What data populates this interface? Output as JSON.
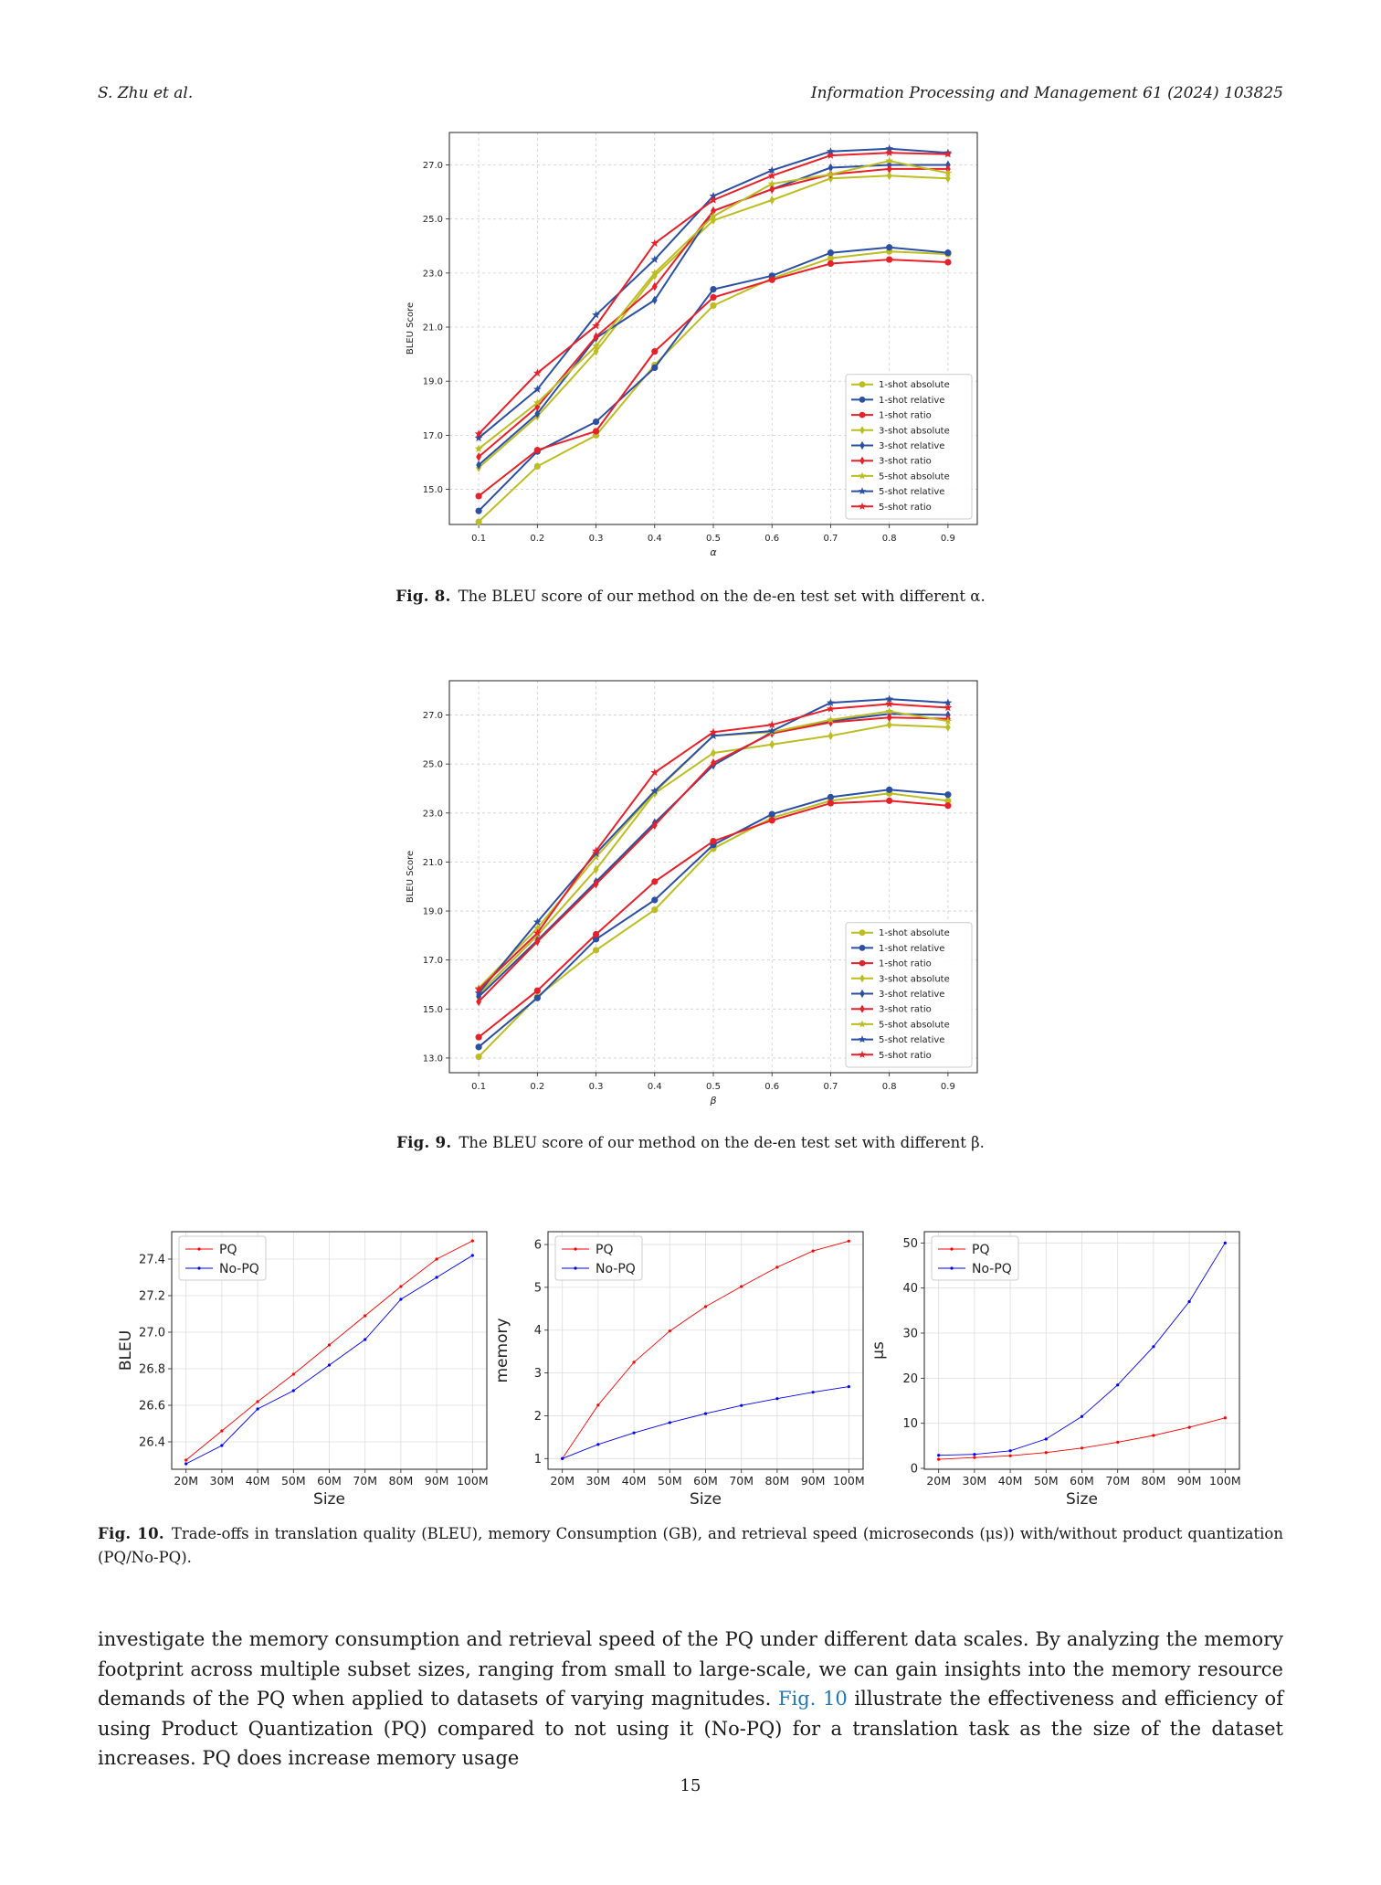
{
  "header": {
    "left": "S. Zhu et al.",
    "right": "Information Processing and Management 61 (2024) 103825"
  },
  "figures": {
    "fig8_caption_label": "Fig. 8.",
    "fig8_caption_text": "The BLEU score of our method on the de-en test set with different α.",
    "fig9_caption_label": "Fig. 9.",
    "fig9_caption_text": "The BLEU score of our method on the de-en test set with different β.",
    "fig10_caption_label": "Fig. 10.",
    "fig10_caption_text": "Trade-offs in translation quality (BLEU), memory Consumption (GB), and retrieval speed (microseconds (μs)) with/without product quantization (PQ/No-PQ)."
  },
  "body": {
    "text_before_link": "investigate the memory consumption and retrieval speed of the PQ under different data scales. By analyzing the memory footprint across multiple subset sizes, ranging from small to large-scale, we can gain insights into the memory resource demands of the PQ when applied to datasets of varying magnitudes.",
    "link_text": "Fig. 10",
    "text_after_link": "illustrate the effectiveness and efficiency of using Product Quantization (PQ) compared to not using it (No-PQ) for a translation task as the size of the dataset increases. PQ does increase memory usage"
  },
  "page_number": "15",
  "colors": {
    "absolute": "#bcbd22",
    "relative": "#2b4fa2",
    "ratio": "#e8202a",
    "pq": "#ff0000",
    "nopq": "#0000ff"
  },
  "chart_data": [
    {
      "id": "fig8",
      "type": "line",
      "xlabel": "α",
      "ylabel": "BLEU Score",
      "x": [
        0.1,
        0.2,
        0.3,
        0.4,
        0.5,
        0.6,
        0.7,
        0.8,
        0.9
      ],
      "x_ticks": [
        "0.1",
        "0.2",
        "0.3",
        "0.4",
        "0.5",
        "0.6",
        "0.7",
        "0.8",
        "0.9"
      ],
      "y_ticks": [
        "15.0",
        "17.0",
        "19.0",
        "21.0",
        "23.0",
        "25.0",
        "27.0"
      ],
      "ylim": [
        13.7,
        28.2
      ],
      "grid": true,
      "legend_position": "lower-right",
      "series": [
        {
          "name": "1-shot absolute",
          "color": "#bcbd22",
          "marker": "circle",
          "values": [
            13.8,
            15.85,
            17.0,
            19.6,
            21.8,
            22.8,
            23.55,
            23.8,
            23.7
          ]
        },
        {
          "name": "1-shot relative",
          "color": "#2b4fa2",
          "marker": "circle",
          "values": [
            14.2,
            16.4,
            17.5,
            19.5,
            22.4,
            22.9,
            23.75,
            23.95,
            23.75
          ]
        },
        {
          "name": "1-shot ratio",
          "color": "#e8202a",
          "marker": "circle",
          "values": [
            14.75,
            16.45,
            17.15,
            20.1,
            22.1,
            22.75,
            23.35,
            23.5,
            23.4
          ]
        },
        {
          "name": "3-shot absolute",
          "color": "#bcbd22",
          "marker": "diamond",
          "values": [
            15.8,
            17.7,
            20.1,
            22.9,
            24.95,
            25.7,
            26.5,
            26.6,
            26.5
          ]
        },
        {
          "name": "3-shot relative",
          "color": "#2b4fa2",
          "marker": "diamond",
          "values": [
            15.9,
            17.8,
            20.6,
            22.0,
            25.3,
            26.1,
            26.9,
            27.0,
            27.0
          ]
        },
        {
          "name": "3-shot ratio",
          "color": "#e8202a",
          "marker": "diamond",
          "values": [
            16.2,
            18.05,
            20.65,
            22.5,
            25.3,
            26.1,
            26.65,
            26.85,
            26.85
          ]
        },
        {
          "name": "5-shot absolute",
          "color": "#bcbd22",
          "marker": "star",
          "values": [
            16.5,
            18.2,
            20.3,
            23.0,
            25.1,
            26.3,
            26.65,
            27.15,
            26.7
          ]
        },
        {
          "name": "5-shot relative",
          "color": "#2b4fa2",
          "marker": "star",
          "values": [
            16.9,
            18.7,
            21.45,
            23.5,
            25.85,
            26.8,
            27.5,
            27.6,
            27.45
          ]
        },
        {
          "name": "5-shot ratio",
          "color": "#e8202a",
          "marker": "star",
          "values": [
            17.05,
            19.3,
            21.05,
            24.1,
            25.7,
            26.6,
            27.35,
            27.45,
            27.4
          ]
        }
      ]
    },
    {
      "id": "fig9",
      "type": "line",
      "xlabel": "β",
      "ylabel": "BLEU Score",
      "x": [
        0.1,
        0.2,
        0.3,
        0.4,
        0.5,
        0.6,
        0.7,
        0.8,
        0.9
      ],
      "x_ticks": [
        "0.1",
        "0.2",
        "0.3",
        "0.4",
        "0.5",
        "0.6",
        "0.7",
        "0.8",
        "0.9"
      ],
      "y_ticks": [
        "13.0",
        "15.0",
        "17.0",
        "19.0",
        "21.0",
        "23.0",
        "25.0",
        "27.0"
      ],
      "ylim": [
        12.4,
        28.4
      ],
      "grid": true,
      "legend_position": "lower-right",
      "series": [
        {
          "name": "1-shot absolute",
          "color": "#bcbd22",
          "marker": "circle",
          "values": [
            13.05,
            15.5,
            17.4,
            19.05,
            21.55,
            22.8,
            23.5,
            23.8,
            23.5
          ]
        },
        {
          "name": "1-shot relative",
          "color": "#2b4fa2",
          "marker": "circle",
          "values": [
            13.45,
            15.45,
            17.85,
            19.45,
            21.7,
            22.95,
            23.65,
            23.95,
            23.75
          ]
        },
        {
          "name": "1-shot ratio",
          "color": "#e8202a",
          "marker": "circle",
          "values": [
            13.85,
            15.75,
            18.05,
            20.2,
            21.85,
            22.7,
            23.4,
            23.5,
            23.3
          ]
        },
        {
          "name": "3-shot absolute",
          "color": "#bcbd22",
          "marker": "diamond",
          "values": [
            15.6,
            18.0,
            20.7,
            23.8,
            25.45,
            25.8,
            26.15,
            26.6,
            26.5
          ]
        },
        {
          "name": "3-shot relative",
          "color": "#2b4fa2",
          "marker": "diamond",
          "values": [
            15.5,
            17.8,
            20.2,
            22.6,
            24.95,
            26.3,
            26.75,
            27.05,
            27.0
          ]
        },
        {
          "name": "3-shot ratio",
          "color": "#e8202a",
          "marker": "diamond",
          "values": [
            15.3,
            17.75,
            20.1,
            22.5,
            25.05,
            26.25,
            26.7,
            26.9,
            26.85
          ]
        },
        {
          "name": "5-shot absolute",
          "color": "#bcbd22",
          "marker": "star",
          "values": [
            15.85,
            18.3,
            21.2,
            23.85,
            26.15,
            26.3,
            26.8,
            27.15,
            26.75
          ]
        },
        {
          "name": "5-shot relative",
          "color": "#2b4fa2",
          "marker": "star",
          "values": [
            15.65,
            18.55,
            21.35,
            23.9,
            26.15,
            26.35,
            27.5,
            27.65,
            27.5
          ]
        },
        {
          "name": "5-shot ratio",
          "color": "#e8202a",
          "marker": "star",
          "values": [
            15.8,
            18.1,
            21.45,
            24.65,
            26.3,
            26.6,
            27.25,
            27.45,
            27.3
          ]
        }
      ]
    },
    {
      "id": "fig10a",
      "type": "line",
      "xlabel": "Size",
      "ylabel": "BLEU",
      "categories": [
        "20M",
        "30M",
        "40M",
        "50M",
        "60M",
        "70M",
        "80M",
        "90M",
        "100M"
      ],
      "y_ticks": [
        "26.4",
        "26.6",
        "26.8",
        "27.0",
        "27.2",
        "27.4"
      ],
      "y_tick_values": [
        26.4,
        26.6,
        26.8,
        27.0,
        27.2,
        27.4
      ],
      "ylim": [
        26.25,
        27.55
      ],
      "grid": true,
      "legend_position": "upper-left",
      "series": [
        {
          "name": "PQ",
          "color": "#ff0000",
          "values": [
            26.3,
            26.46,
            26.62,
            26.77,
            26.93,
            27.09,
            27.25,
            27.4,
            27.5
          ]
        },
        {
          "name": "No-PQ",
          "color": "#0000ff",
          "values": [
            26.28,
            26.38,
            26.58,
            26.68,
            26.82,
            26.96,
            27.18,
            27.3,
            27.42
          ]
        }
      ]
    },
    {
      "id": "fig10b",
      "type": "line",
      "xlabel": "Size",
      "ylabel": "memory",
      "categories": [
        "20M",
        "30M",
        "40M",
        "50M",
        "60M",
        "70M",
        "80M",
        "90M",
        "100M"
      ],
      "y_ticks": [
        "1",
        "2",
        "3",
        "4",
        "5",
        "6"
      ],
      "y_tick_values": [
        1,
        2,
        3,
        4,
        5,
        6
      ],
      "ylim": [
        0.75,
        6.3
      ],
      "grid": true,
      "legend_position": "upper-left",
      "series": [
        {
          "name": "PQ",
          "color": "#ff0000",
          "values": [
            1.0,
            2.25,
            3.25,
            3.98,
            4.55,
            5.02,
            5.47,
            5.85,
            6.08
          ]
        },
        {
          "name": "No-PQ",
          "color": "#0000ff",
          "values": [
            1.0,
            1.33,
            1.6,
            1.84,
            2.05,
            2.24,
            2.4,
            2.55,
            2.68
          ]
        }
      ]
    },
    {
      "id": "fig10c",
      "type": "line",
      "xlabel": "Size",
      "ylabel": "μs",
      "categories": [
        "20M",
        "30M",
        "40M",
        "50M",
        "60M",
        "70M",
        "80M",
        "90M",
        "100M"
      ],
      "y_ticks": [
        "0",
        "10",
        "20",
        "30",
        "40",
        "50"
      ],
      "y_tick_values": [
        0,
        10,
        20,
        30,
        40,
        50
      ],
      "ylim": [
        -0.2,
        52.5
      ],
      "grid": true,
      "legend_position": "upper-left",
      "series": [
        {
          "name": "PQ",
          "color": "#ff0000",
          "values": [
            2.0,
            2.4,
            2.8,
            3.5,
            4.5,
            5.8,
            7.3,
            9.1,
            11.2
          ]
        },
        {
          "name": "No-PQ",
          "color": "#0000ff",
          "values": [
            2.9,
            3.1,
            3.9,
            6.5,
            11.5,
            18.5,
            27.0,
            37.0,
            50.0
          ]
        }
      ]
    }
  ]
}
